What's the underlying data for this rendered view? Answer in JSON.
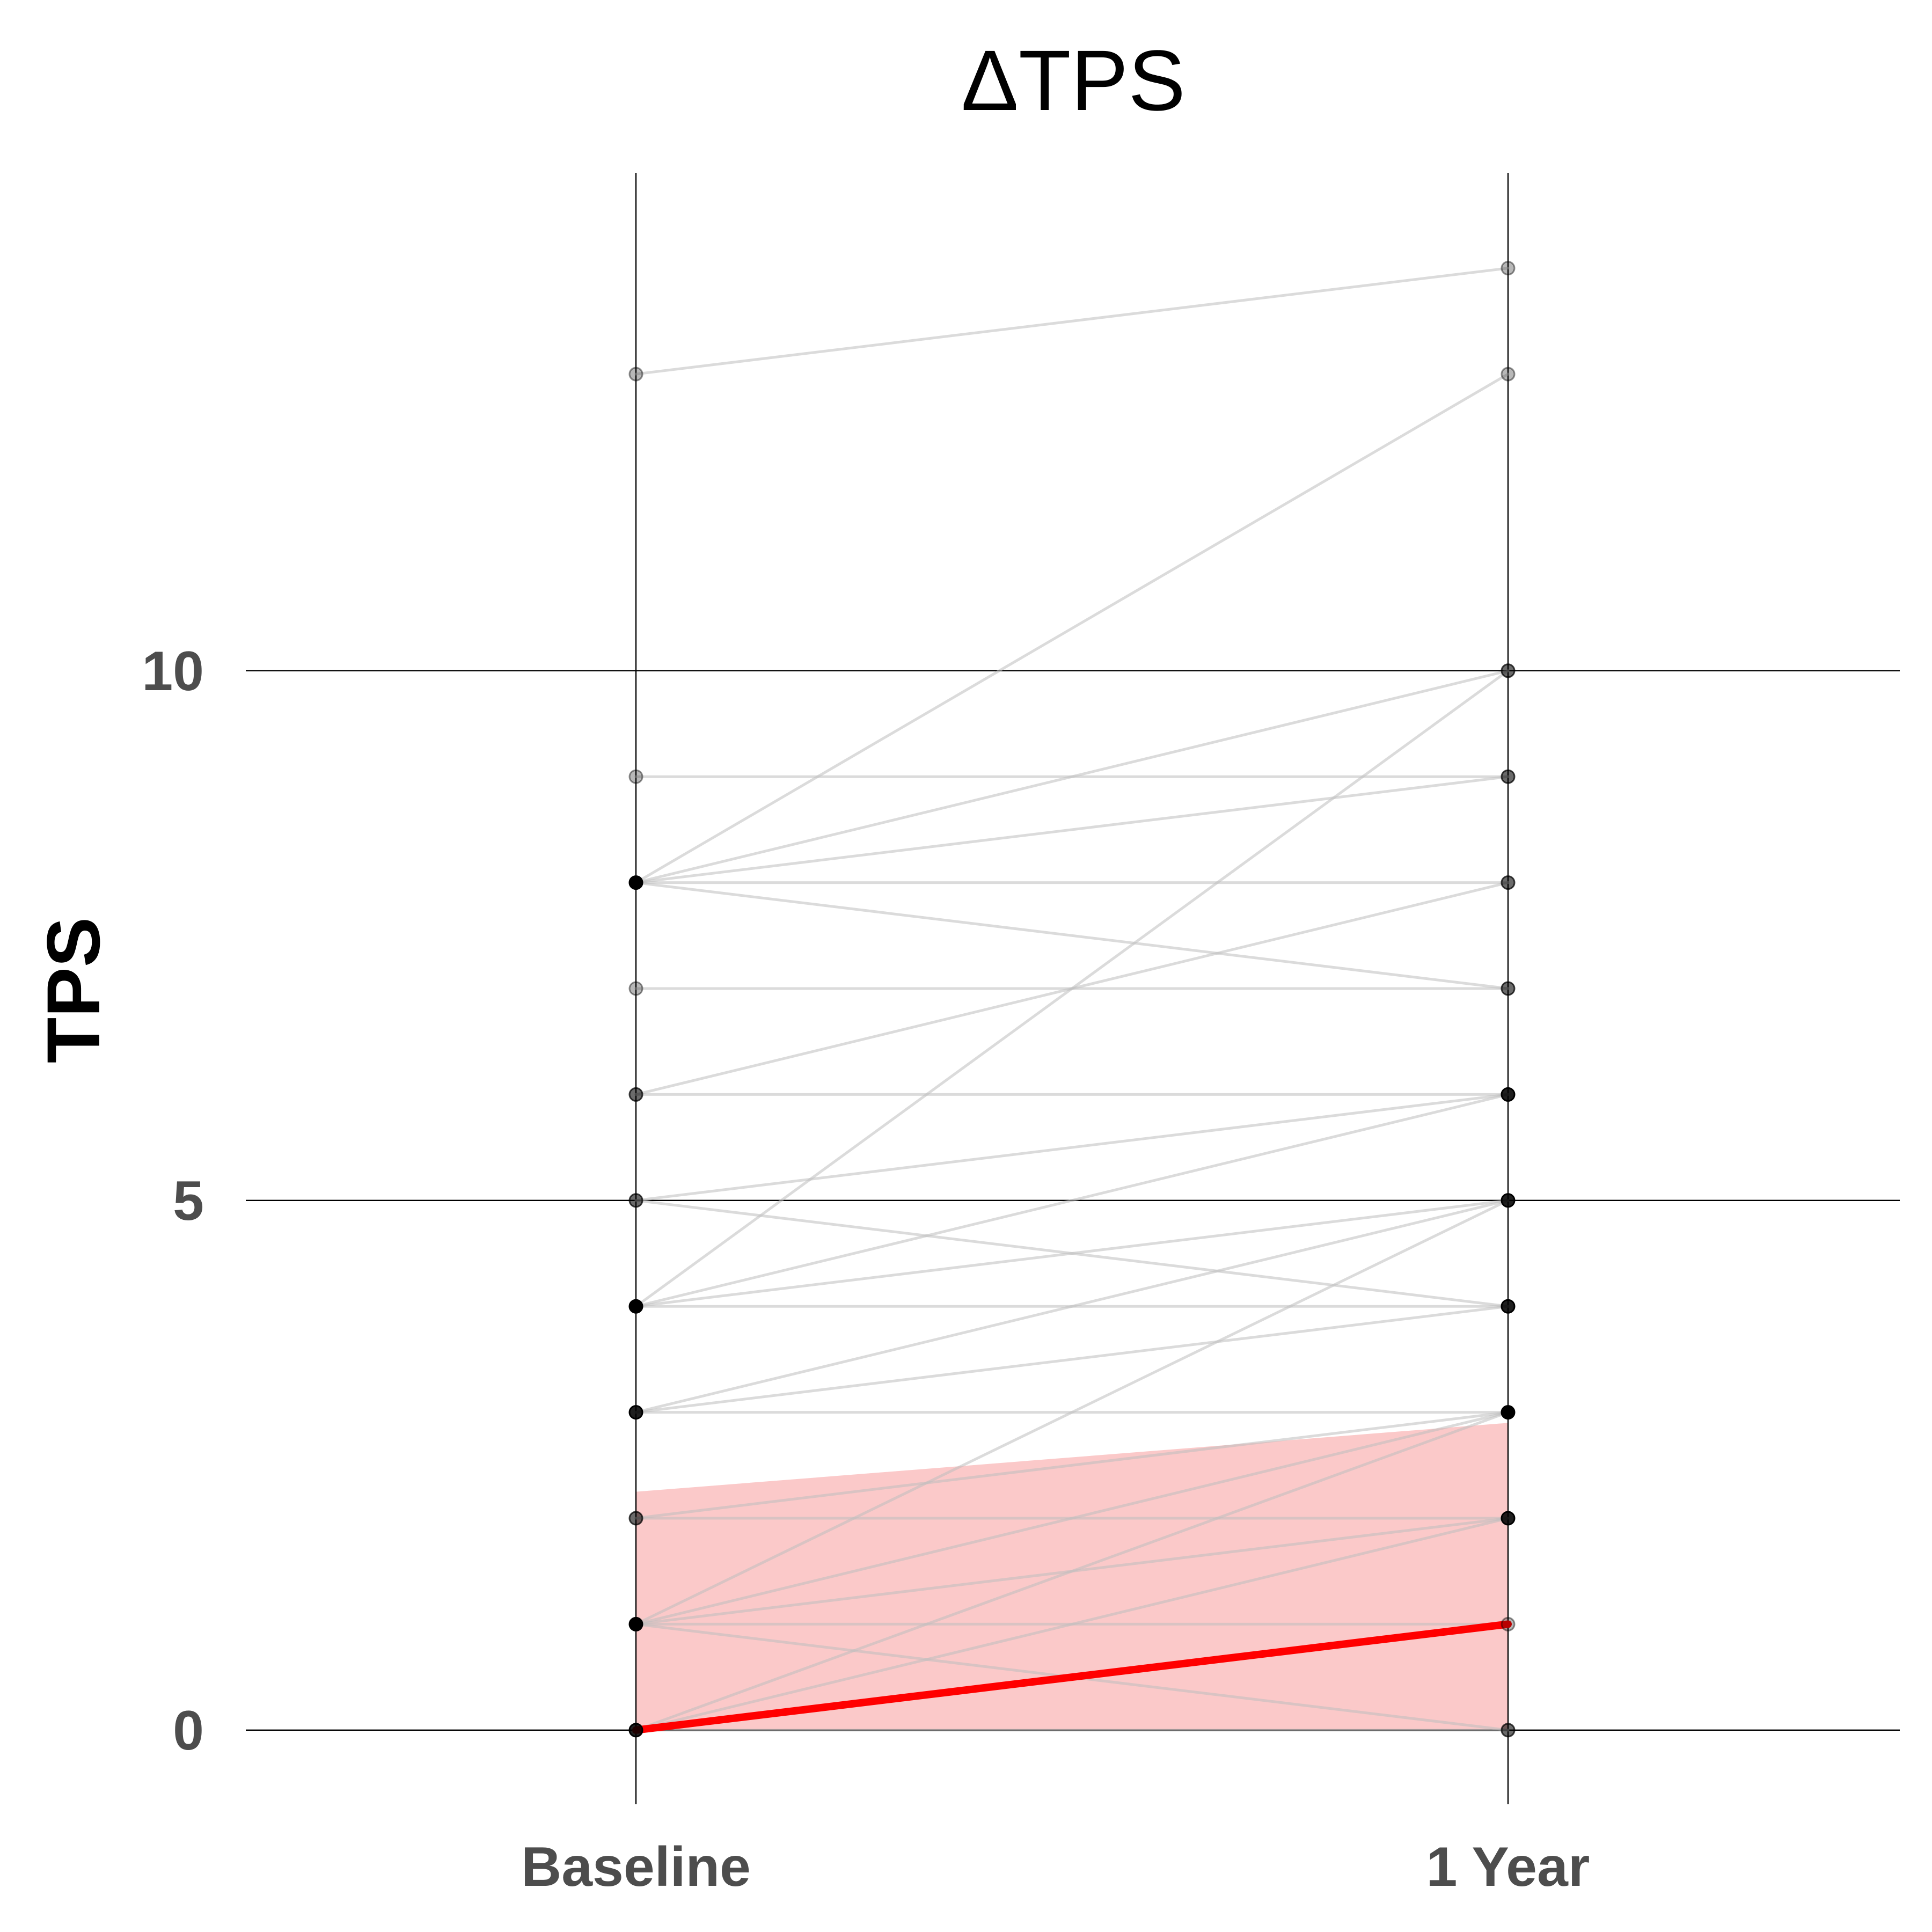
{
  "chart_data": {
    "type": "line",
    "title": "ΔTPS",
    "ylabel": "TPS",
    "xlabel": "",
    "categories": [
      "Baseline",
      "1 Year"
    ],
    "y_ticks": [
      0,
      5,
      10
    ],
    "ylim": [
      -0.7,
      14.7
    ],
    "grid": true,
    "legend": "none",
    "colors": {
      "background": "#ffffff",
      "gridline": "#000000",
      "pair_line": "#bdbdbd",
      "point": "#000000",
      "median": "#ff0000",
      "band": "#fbc9c9",
      "tick_label": "#4d4d4d"
    },
    "pairs": [
      [
        12.8,
        13.8
      ],
      [
        8,
        12.8
      ],
      [
        8,
        10
      ],
      [
        8,
        9
      ],
      [
        8,
        8
      ],
      [
        8,
        7
      ],
      [
        9,
        9
      ],
      [
        7,
        7
      ],
      [
        6,
        8
      ],
      [
        6,
        6
      ],
      [
        5,
        6
      ],
      [
        5,
        4
      ],
      [
        4,
        10
      ],
      [
        4,
        6
      ],
      [
        4,
        5
      ],
      [
        4,
        4
      ],
      [
        3,
        5
      ],
      [
        3,
        4
      ],
      [
        3,
        3
      ],
      [
        2,
        3
      ],
      [
        2,
        2
      ],
      [
        1,
        5
      ],
      [
        1,
        3
      ],
      [
        1,
        2
      ],
      [
        1,
        1
      ],
      [
        1,
        0
      ],
      [
        0,
        3
      ],
      [
        0,
        2
      ],
      [
        0,
        0
      ]
    ],
    "median": [
      0,
      1
    ],
    "band": {
      "upper": [
        2.25,
        2.9
      ],
      "lower": [
        0,
        0
      ]
    }
  }
}
